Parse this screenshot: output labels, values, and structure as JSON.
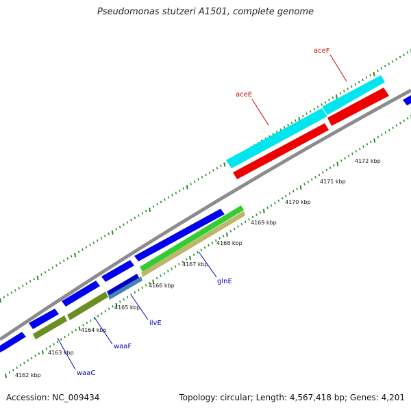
{
  "title": "Pseudomonas stutzeri A1501, complete genome",
  "footer": {
    "accession": "Accession: NC_009434",
    "summary": "Topology: circular; Length: 4,567,418 bp; Genes: 4,201"
  },
  "colors": {
    "backbone": "#8c8c8c",
    "tick": "#1f8a1f",
    "forward_gene": "#0000ee",
    "aceE_top": "#00e5ee",
    "aceE_bottom": "#ee0000",
    "gene_label_blue": "#0000cc",
    "gene_label_red": "#cc0000"
  },
  "scale_labels": [
    "4162 kbp",
    "4163 kbp",
    "4164 kbp",
    "4165 kbp",
    "4166 kbp",
    "4167 kbp",
    "4168 kbp",
    "4169 kbp",
    "4170 kbp",
    "4171 kbp",
    "4172 kbp"
  ],
  "gene_labels": [
    {
      "name": "waaC",
      "color": "blue"
    },
    {
      "name": "waaF",
      "color": "blue"
    },
    {
      "name": "ilvE",
      "color": "blue"
    },
    {
      "name": "glnE",
      "color": "blue"
    },
    {
      "name": "aceE",
      "color": "red"
    },
    {
      "name": "aceF",
      "color": "red"
    }
  ]
}
